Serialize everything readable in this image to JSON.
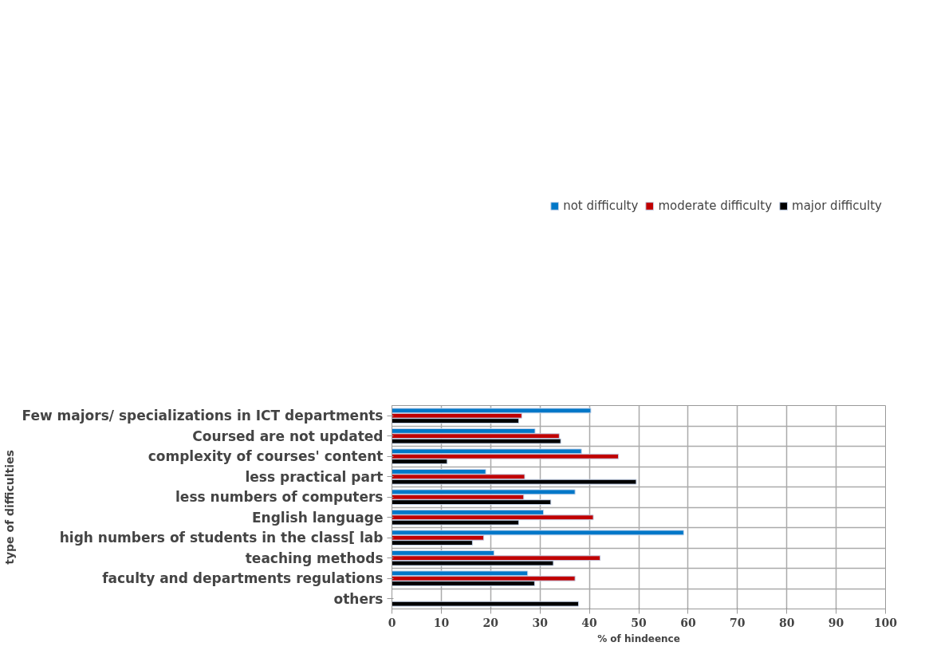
{
  "chart_data": {
    "type": "bar",
    "orientation": "horizontal",
    "xlabel": "% of hindeence",
    "ylabel": "type of difficulties",
    "categories": [
      "Few majors/ specializations in ICT departments",
      "Coursed are not updated",
      "complexity of courses' content",
      "less practical part",
      "less numbers of computers",
      "English language",
      "high numbers of students in the class[ lab",
      "teaching methods",
      "faculty and departments regulations",
      "others"
    ],
    "series": [
      {
        "name": "not difficulty",
        "color": "#0077c8",
        "values": [
          40.3,
          29.0,
          38.4,
          19.0,
          37.1,
          30.7,
          59.1,
          20.7,
          27.5,
          null
        ]
      },
      {
        "name": "moderate difficulty",
        "color": "#c00000",
        "values": [
          26.3,
          33.9,
          45.9,
          26.9,
          26.7,
          40.8,
          18.6,
          42.2,
          37.1,
          null
        ]
      },
      {
        "name": "major difficulty",
        "color": "#000000",
        "values": [
          25.7,
          34.2,
          11.2,
          49.5,
          32.2,
          25.7,
          16.3,
          32.7,
          28.9,
          37.8
        ]
      }
    ],
    "xlim": [
      0,
      100
    ],
    "xticks": [
      0,
      10,
      20,
      30,
      40,
      50,
      60,
      70,
      80,
      90,
      100
    ],
    "grid": true,
    "legend": "top right"
  }
}
